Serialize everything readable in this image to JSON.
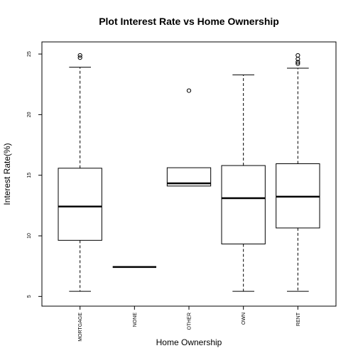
{
  "chart_data": {
    "type": "boxplot",
    "title": "Plot Interest Rate vs Home Ownership",
    "xlabel": "Home Ownership",
    "ylabel": "Interest Rate(%)",
    "ylim": [
      5,
      25
    ],
    "yticks": [
      5,
      10,
      15,
      20,
      25
    ],
    "grid": false,
    "categories": [
      "MORTGAGE",
      "NONE",
      "OTHER",
      "OWN",
      "RENT"
    ],
    "boxes": [
      {
        "category": "MORTGAGE",
        "whisker_low": 5.42,
        "q1": 9.63,
        "median": 12.42,
        "q3": 15.58,
        "whisker_high": 23.91,
        "outliers": [
          24.7,
          24.89
        ]
      },
      {
        "category": "NONE",
        "whisker_low": 7.43,
        "q1": 7.43,
        "median": 7.43,
        "q3": 7.43,
        "whisker_high": 7.43,
        "outliers": []
      },
      {
        "category": "OTHER",
        "whisker_low": 14.11,
        "q1": 14.11,
        "median": 14.33,
        "q3": 15.62,
        "whisker_high": 15.62,
        "outliers": [
          21.98
        ]
      },
      {
        "category": "OWN",
        "whisker_low": 5.42,
        "q1": 9.33,
        "median": 13.11,
        "q3": 15.8,
        "whisker_high": 23.28,
        "outliers": []
      },
      {
        "category": "RENT",
        "whisker_low": 5.42,
        "q1": 10.65,
        "median": 13.23,
        "q3": 15.95,
        "whisker_high": 23.83,
        "outliers": [
          24.2,
          24.33,
          24.59,
          24.89
        ]
      }
    ]
  }
}
